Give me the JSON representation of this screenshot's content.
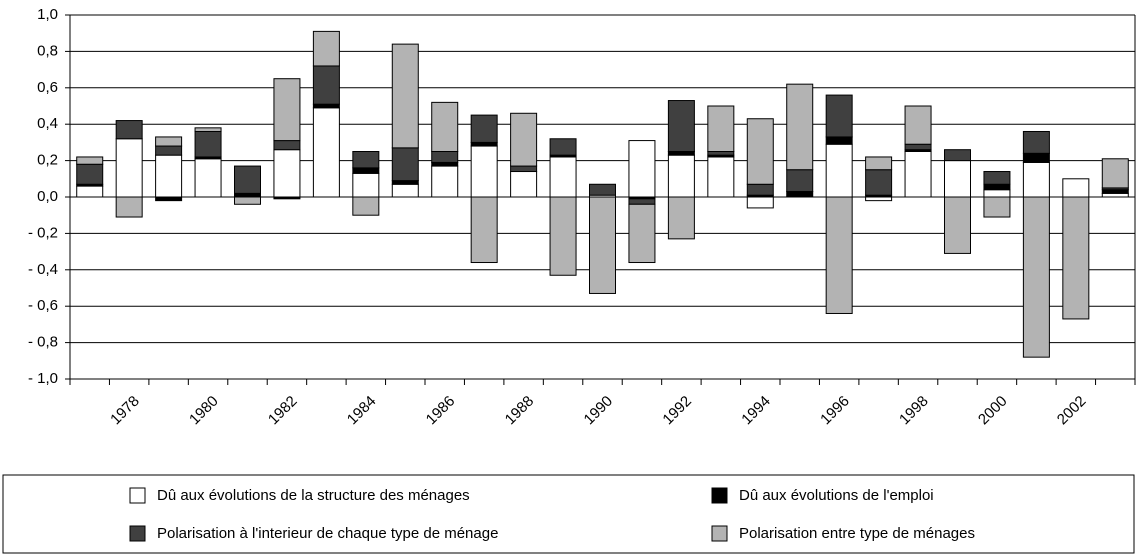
{
  "chart_data": {
    "type": "bar",
    "stacked": true,
    "categories": [
      null,
      "1978",
      null,
      "1980",
      null,
      "1982",
      null,
      "1984",
      null,
      "1986",
      null,
      "1988",
      null,
      "1990",
      null,
      "1992",
      null,
      "1994",
      null,
      "1996",
      null,
      "1998",
      null,
      "2000",
      null,
      "2002",
      null
    ],
    "series": [
      {
        "name": "Dû aux évolutions de la structure des ménages",
        "color": "#ffffff",
        "values": [
          0.06,
          0.32,
          0.23,
          0.21,
          0,
          0.26,
          0.49,
          0.13,
          0.07,
          0.17,
          0.28,
          0.14,
          0.22,
          0.01,
          0.31,
          0.23,
          0.22,
          -0.06,
          0,
          0.29,
          -0.02,
          0.25,
          0.2,
          0.04,
          0.19,
          0.1,
          0.02
        ]
      },
      {
        "name": "Dû aux évolutions de l'emploi",
        "color": "#000000",
        "values": [
          0.01,
          0,
          -0.02,
          0.01,
          0.02,
          -0.01,
          0.02,
          0.03,
          0.02,
          0.02,
          0.02,
          0,
          0.01,
          0,
          -0.01,
          0.02,
          0.01,
          0.01,
          0.03,
          0.04,
          0.01,
          0.01,
          0,
          0.03,
          0.05,
          0,
          0.02
        ]
      },
      {
        "name": "Polarisation à l'interieur de chaque type de ménage",
        "color": "#404040",
        "values": [
          0.11,
          0.1,
          0.05,
          0.14,
          0.15,
          0.05,
          0.21,
          0.09,
          0.18,
          0.06,
          0.15,
          0.03,
          0.09,
          0.06,
          -0.03,
          0.28,
          0.02,
          0.06,
          0.12,
          0.23,
          0.14,
          0.03,
          0.06,
          0.07,
          0.12,
          0,
          0.01
        ]
      },
      {
        "name": "Polarisation entre type de ménages",
        "color": "#b3b3b3",
        "values": [
          0.04,
          -0.11,
          0.05,
          0.02,
          -0.04,
          0.34,
          0.19,
          -0.1,
          0.57,
          0.27,
          -0.36,
          0.29,
          -0.43,
          -0.53,
          -0.32,
          -0.23,
          0.25,
          0.36,
          0.47,
          -0.64,
          0.07,
          0.21,
          -0.31,
          -0.11,
          -0.88,
          -0.67,
          0.16
        ]
      }
    ],
    "ylim": [
      -1.0,
      1.0
    ],
    "yticks": [
      {
        "value": -1.0,
        "label": "- 1,0"
      },
      {
        "value": -0.8,
        "label": "- 0,8"
      },
      {
        "value": -0.6,
        "label": "- 0,6"
      },
      {
        "value": -0.4,
        "label": "- 0,4"
      },
      {
        "value": -0.2,
        "label": "- 0,2"
      },
      {
        "value": 0,
        "label": "0,0"
      },
      {
        "value": 0.2,
        "label": "0,2"
      },
      {
        "value": 0.4,
        "label": "0,4"
      },
      {
        "value": 0.6,
        "label": "0,6"
      },
      {
        "value": 0.8,
        "label": "0,8"
      },
      {
        "value": 1.0,
        "label": "1,0"
      }
    ],
    "grid": true
  }
}
